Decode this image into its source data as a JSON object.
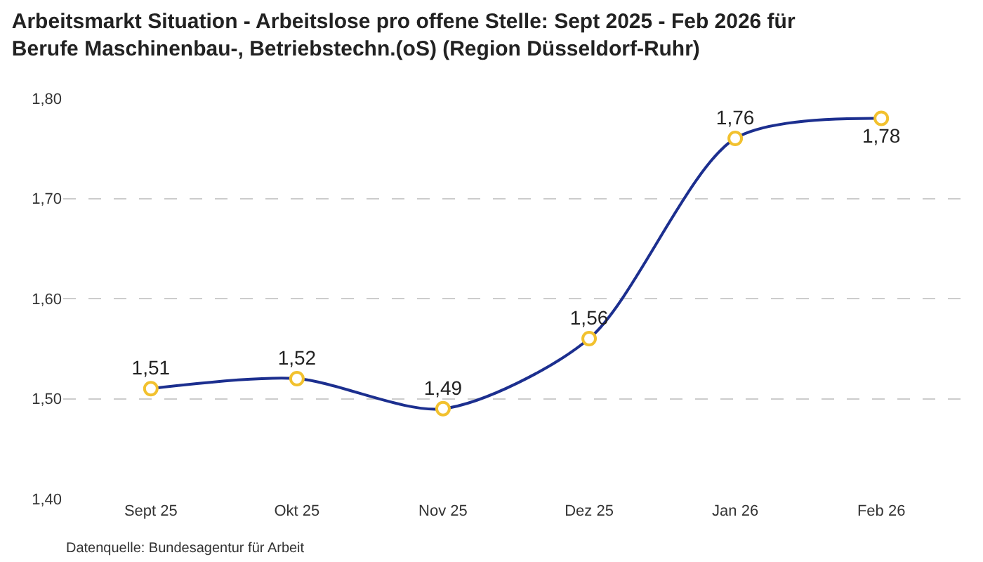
{
  "chart_data": {
    "type": "line",
    "title": "Arbeitsmarkt Situation - Arbeitslose pro offene Stelle: Sept 2025 - Feb 2026 für\nBerufe Maschinenbau-, Betriebstechn.(oS) (Region Düsseldorf-Ruhr)",
    "categories": [
      "Sept 25",
      "Okt 25",
      "Nov 25",
      "Dez 25",
      "Jan 26",
      "Feb 26"
    ],
    "series": [
      {
        "color": "#1c2f8f",
        "values": [
          1.51,
          1.52,
          1.49,
          1.56,
          1.76,
          1.78
        ],
        "value_labels": [
          "1,51",
          "1,52",
          "1,49",
          "1,56",
          "1,76",
          "1,78"
        ]
      }
    ],
    "ylim": [
      1.4,
      1.8
    ],
    "yticks": [
      {
        "value": 1.4,
        "label": "1,40"
      },
      {
        "value": 1.5,
        "label": "1,50"
      },
      {
        "value": 1.6,
        "label": "1,60"
      },
      {
        "value": 1.7,
        "label": "1,70"
      },
      {
        "value": 1.8,
        "label": "1,80"
      }
    ],
    "grid": "y",
    "marker": "circle",
    "line_style": "solid",
    "annotations": [
      "Datenquelle: Bundesagentur für Arbeit"
    ]
  }
}
